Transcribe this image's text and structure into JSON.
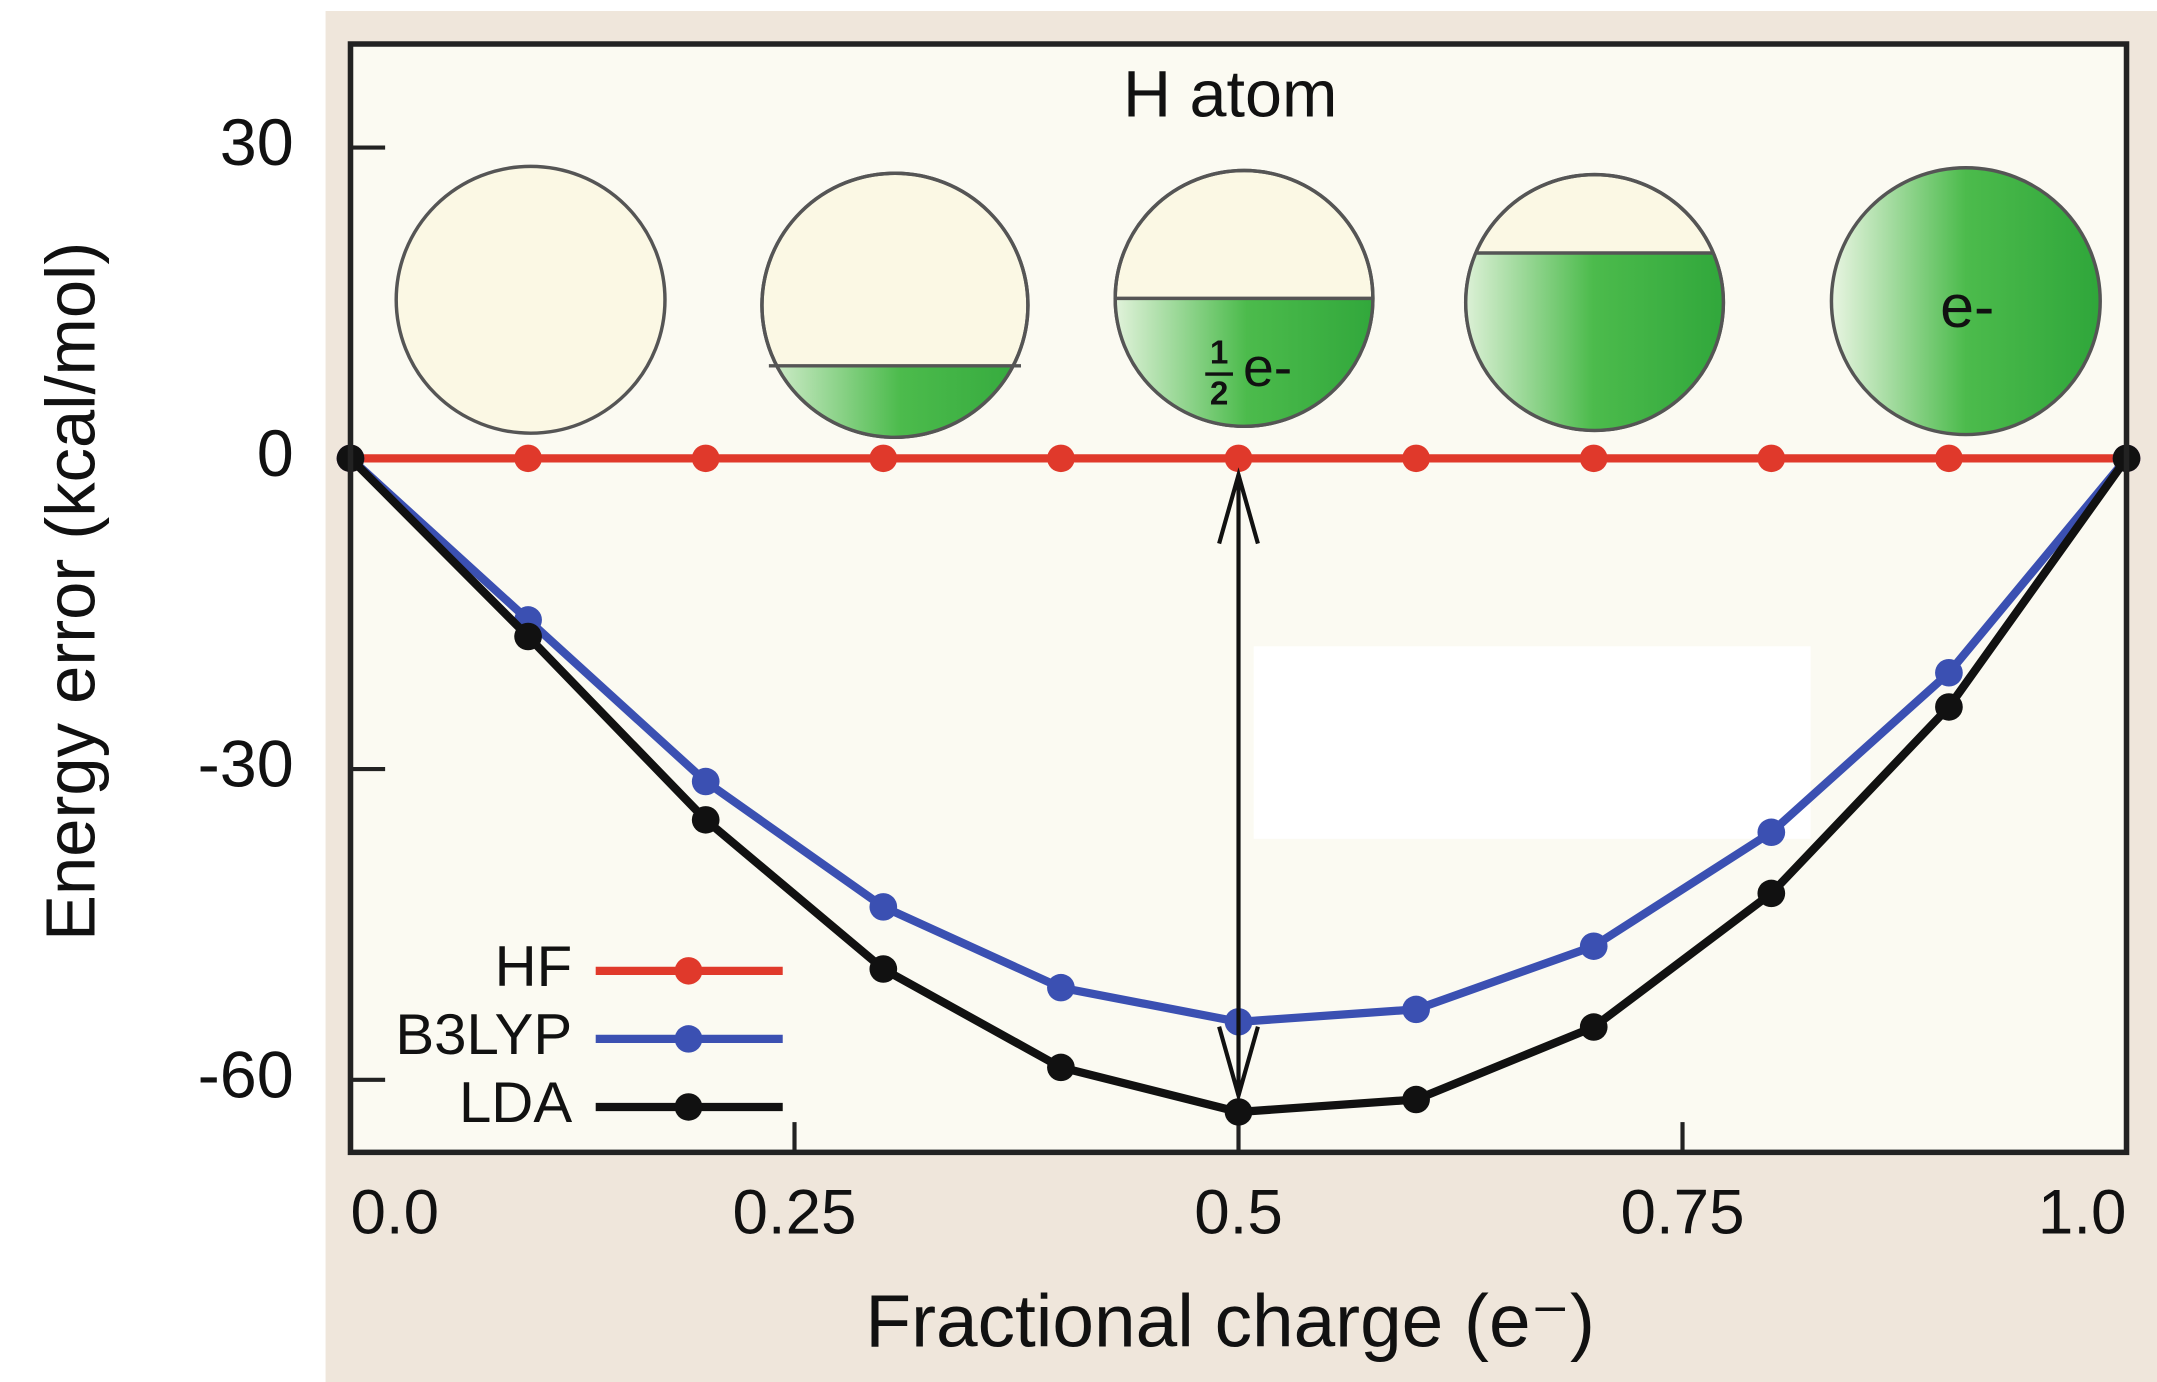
{
  "chart_data": {
    "type": "line",
    "title": "H atom",
    "xlabel": "Fractional charge (e⁻)",
    "ylabel": "Energy error (kcal/mol)",
    "x": [
      0,
      0.1,
      0.2,
      0.3,
      0.4,
      0.5,
      0.6,
      0.7,
      0.8,
      0.9,
      1.0
    ],
    "series": [
      {
        "name": "HF",
        "color": "#e0392b",
        "values": [
          0,
          0,
          0,
          0,
          0,
          0,
          0,
          0,
          0,
          0,
          0
        ]
      },
      {
        "name": "B3LYP",
        "color": "#3b50b2",
        "values": [
          0,
          -15.6,
          -31.2,
          -43.3,
          -51.1,
          -54.4,
          -53.2,
          -47.1,
          -36.1,
          -20.7,
          0
        ]
      },
      {
        "name": "LDA",
        "color": "#111111",
        "values": [
          0,
          -17.2,
          -34.9,
          -49.3,
          -58.8,
          -63.1,
          -61.9,
          -54.9,
          -42,
          -24,
          0
        ]
      }
    ],
    "xlim": [
      0,
      1
    ],
    "xticks": [
      {
        "value": 0,
        "label": "0.0"
      },
      0.25,
      0.5,
      0.75,
      {
        "value": 1,
        "label": "1.0"
      }
    ],
    "ylim": [
      -67,
      40
    ],
    "yticks": [
      -60,
      -30,
      0,
      30
    ],
    "legend": "lower left",
    "annotations": [
      "1",
      "2",
      "e-",
      "e-"
    ]
  }
}
